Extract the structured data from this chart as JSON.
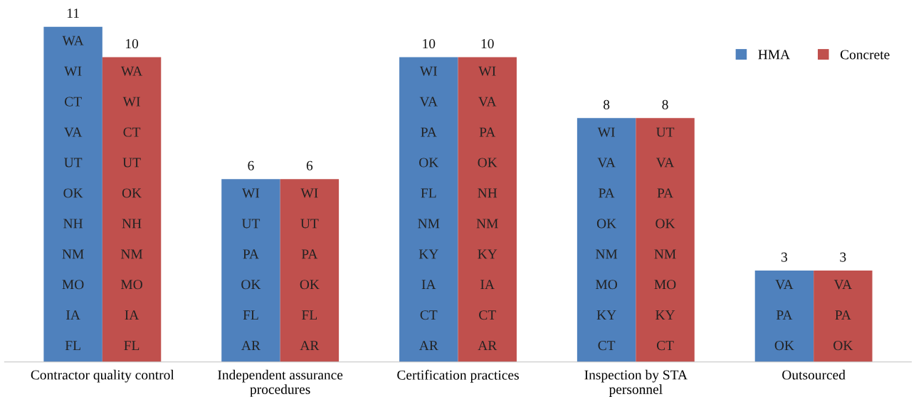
{
  "chart_data": {
    "type": "bar",
    "categories": [
      "Contractor quality control",
      "Independent assurance\nprocedures",
      "Certification practices",
      "Inspection by STA\npersonnel",
      "Outsourced"
    ],
    "series": [
      {
        "name": "HMA",
        "color": "#4f81bd",
        "values": [
          11,
          6,
          10,
          8,
          3
        ]
      },
      {
        "name": "Concrete",
        "color": "#c0504d",
        "values": [
          10,
          6,
          10,
          8,
          3
        ]
      }
    ],
    "annotations": [
      {
        "text": "WA",
        "x": "Contractor quality control",
        "y": 10.5
      },
      {
        "text": "WI",
        "x": "Contractor quality control",
        "y": 9.5
      },
      {
        "text": "CT",
        "x": "Contractor quality control",
        "y": 8.5
      },
      {
        "text": "VA",
        "x": "Contractor quality control",
        "y": 7.5
      },
      {
        "text": "UT",
        "x": "Contractor quality control",
        "y": 6.5
      },
      {
        "text": "OK",
        "x": "Contractor quality control",
        "y": 5.5
      },
      {
        "text": "NH",
        "x": "Contractor quality control",
        "y": 4.5
      },
      {
        "text": "NM",
        "x": "Contractor quality control",
        "y": 3.5
      },
      {
        "text": "MO",
        "x": "Contractor quality control",
        "y": 2.5
      },
      {
        "text": "IA",
        "x": "Contractor quality control",
        "y": 1.5
      },
      {
        "text": "FL",
        "x": "Contractor quality control",
        "y": 0.5
      },
      {
        "text": "WI",
        "x": "Independent assurance\nprocedures",
        "y": 5.5
      },
      {
        "text": "UT",
        "x": "Independent assurance\nprocedures",
        "y": 4.5
      },
      {
        "text": "PA",
        "x": "Independent assurance\nprocedures",
        "y": 3.5
      },
      {
        "text": "OK",
        "x": "Independent assurance\nprocedures",
        "y": 2.5
      },
      {
        "text": "FL",
        "x": "Independent assurance\nprocedures",
        "y": 1.5
      },
      {
        "text": "AR",
        "x": "Independent assurance\nprocedures",
        "y": 0.5
      },
      {
        "text": "WI",
        "x": "Certification practices",
        "y": 9.5
      },
      {
        "text": "VA",
        "x": "Certification practices",
        "y": 8.5
      },
      {
        "text": "PA",
        "x": "Certification practices",
        "y": 7.5
      },
      {
        "text": "OK",
        "x": "Certification practices",
        "y": 6.5
      },
      {
        "text": "FL",
        "x": "Certification practices",
        "y": 5.5
      },
      {
        "text": "NM",
        "x": "Certification practices",
        "y": 4.5
      },
      {
        "text": "KY",
        "x": "Certification practices",
        "y": 3.5
      },
      {
        "text": "IA",
        "x": "Certification practices",
        "y": 2.5
      },
      {
        "text": "CT",
        "x": "Certification practices",
        "y": 1.5
      },
      {
        "text": "AR",
        "x": "Certification practices",
        "y": 0.5
      },
      {
        "text": "WI",
        "x": "Inspection by STA\npersonnel",
        "y": 7.5
      },
      {
        "text": "VA",
        "x": "Inspection by STA\npersonnel",
        "y": 6.5
      },
      {
        "text": "PA",
        "x": "Inspection by STA\npersonnel",
        "y": 5.5
      },
      {
        "text": "OK",
        "x": "Inspection by STA\npersonnel",
        "y": 4.5
      },
      {
        "text": "NM",
        "x": "Inspection by STA\npersonnel",
        "y": 3.5
      },
      {
        "text": "MO",
        "x": "Inspection by STA\npersonnel",
        "y": 2.5
      },
      {
        "text": "KY",
        "x": "Inspection by STA\npersonnel",
        "y": 1.5
      },
      {
        "text": "CT",
        "x": "Inspection by STA\npersonnel",
        "y": 0.5
      },
      {
        "text": "VA",
        "x": "Outsourced",
        "y": 2.5
      },
      {
        "text": "PA",
        "x": "Outsourced",
        "y": 1.5
      },
      {
        "text": "OK",
        "x": "Outsourced",
        "y": 0.5
      },
      {
        "text": "WA",
        "x": "Contractor quality control",
        "y": 9.5
      },
      {
        "text": "WI",
        "x": "Contractor quality control",
        "y": 8.5
      },
      {
        "text": "CT",
        "x": "Contractor quality control",
        "y": 7.5
      },
      {
        "text": "UT",
        "x": "Contractor quality control",
        "y": 6.5
      },
      {
        "text": "OK",
        "x": "Contractor quality control",
        "y": 5.5
      },
      {
        "text": "NH",
        "x": "Contractor quality control",
        "y": 4.5
      },
      {
        "text": "NM",
        "x": "Contractor quality control",
        "y": 3.5
      },
      {
        "text": "MO",
        "x": "Contractor quality control",
        "y": 2.5
      },
      {
        "text": "IA",
        "x": "Contractor quality control",
        "y": 1.5
      },
      {
        "text": "FL",
        "x": "Contractor quality control",
        "y": 0.5
      },
      {
        "text": "WI",
        "x": "Independent assurance\nprocedures",
        "y": 5.5
      },
      {
        "text": "UT",
        "x": "Independent assurance\nprocedures",
        "y": 4.5
      },
      {
        "text": "PA",
        "x": "Independent assurance\nprocedures",
        "y": 3.5
      },
      {
        "text": "OK",
        "x": "Independent assurance\nprocedures",
        "y": 2.5
      },
      {
        "text": "FL",
        "x": "Independent assurance\nprocedures",
        "y": 1.5
      },
      {
        "text": "AR",
        "x": "Independent assurance\nprocedures",
        "y": 0.5
      },
      {
        "text": "WI",
        "x": "Certification practices",
        "y": 9.5
      },
      {
        "text": "VA",
        "x": "Certification practices",
        "y": 8.5
      },
      {
        "text": "PA",
        "x": "Certification practices",
        "y": 7.5
      },
      {
        "text": "OK",
        "x": "Certification practices",
        "y": 6.5
      },
      {
        "text": "NH",
        "x": "Certification practices",
        "y": 5.5
      },
      {
        "text": "NM",
        "x": "Certification practices",
        "y": 4.5
      },
      {
        "text": "KY",
        "x": "Certification practices",
        "y": 3.5
      },
      {
        "text": "IA",
        "x": "Certification practices",
        "y": 2.5
      },
      {
        "text": "CT",
        "x": "Certification practices",
        "y": 1.5
      },
      {
        "text": "AR",
        "x": "Certification practices",
        "y": 0.5
      },
      {
        "text": "UT",
        "x": "Inspection by STA\npersonnel",
        "y": 7.5
      },
      {
        "text": "VA",
        "x": "Inspection by STA\npersonnel",
        "y": 6.5
      },
      {
        "text": "PA",
        "x": "Inspection by STA\npersonnel",
        "y": 5.5
      },
      {
        "text": "OK",
        "x": "Inspection by STA\npersonnel",
        "y": 4.5
      },
      {
        "text": "NM",
        "x": "Inspection by STA\npersonnel",
        "y": 3.5
      },
      {
        "text": "MO",
        "x": "Inspection by STA\npersonnel",
        "y": 2.5
      },
      {
        "text": "KY",
        "x": "Inspection by STA\npersonnel",
        "y": 1.5
      },
      {
        "text": "CT",
        "x": "Inspection by STA\npersonnel",
        "y": 0.5
      },
      {
        "text": "VA",
        "x": "Outsourced",
        "y": 2.5
      },
      {
        "text": "PA",
        "x": "Outsourced",
        "y": 1.5
      },
      {
        "text": "OK",
        "x": "Outsourced",
        "y": 0.5
      }
    ],
    "data_labels": true,
    "legend": "top right"
  }
}
